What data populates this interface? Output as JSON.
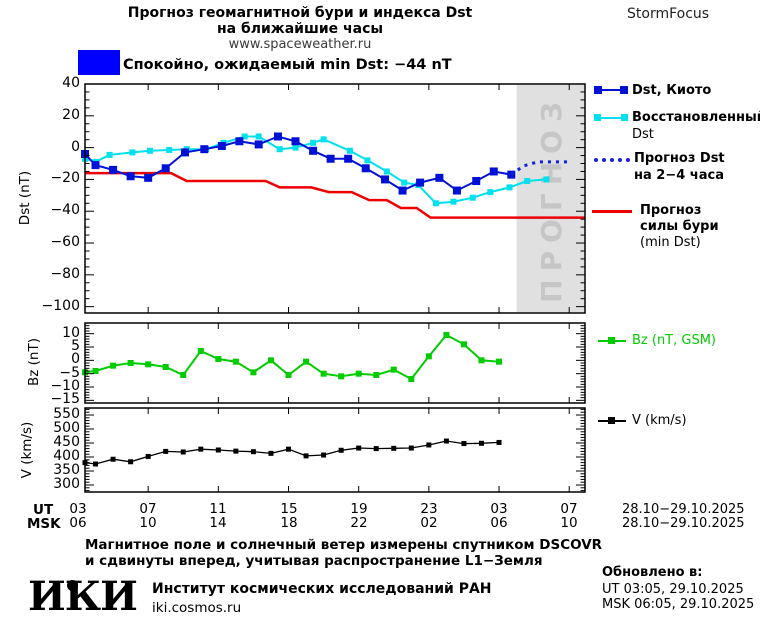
{
  "header": {
    "title_line1": "Прогноз геомагнитной бури и индекса Dst",
    "title_line2": "на ближайшие часы",
    "site": "www.spaceweather.ru",
    "brand": "StormFocus"
  },
  "status": {
    "text": "Спокойно, ожидаемый min Dst: −44 nT"
  },
  "colors": {
    "kyoto": "#0011d6",
    "restored": "#00e0ee",
    "forecast": "#1122dd",
    "storm": "#ee0000",
    "bz": "#00cc00",
    "v": "#000000",
    "status": "#0000ff",
    "band": "#e0e0e0",
    "band_text": "#c6c6c6"
  },
  "legend": {
    "dst_kyoto": "Dst, Киото",
    "restored_line1": "Восстановленный",
    "restored_line2": "Dst",
    "forecast_line1": "Прогноз Dst",
    "forecast_line2": "на 2−4 часа",
    "storm_line1": "Прогноз",
    "storm_line2": "силы бури",
    "storm_line3": "(min Dst)",
    "bz": "Bz (nT, GSM)",
    "v": "V (km/s)"
  },
  "axes": {
    "dst_label": "Dst (nT)",
    "bz_label": "Bz (nT)",
    "v_label": "V (km/s)",
    "ut_label": "UT",
    "msk_label": "MSK",
    "date_range_ut": "28.10−29.10.2025",
    "date_range_msk": "28.10−29.10.2025"
  },
  "footer": {
    "note_line1": "Магнитное поле и солнечный ветер измерены спутником DSCOVR",
    "note_line2": "и сдвинуты вперед, учитывая распространение L1−Земля",
    "updated_title": "Обновлено в:",
    "updated_ut": "UT   03:05, 29.10.2025",
    "updated_msk": "MSK 06:05, 29.10.2025",
    "logo": "ИКИ",
    "institute": "Институт космических исследований РАН",
    "site": "iki.cosmos.ru"
  },
  "chart_data": {
    "type": "line",
    "x_domain": [
      3.4,
      31.9
    ],
    "x_ticks": [
      {
        "h": 3,
        "ut": "03",
        "msk": "06"
      },
      {
        "h": 7,
        "ut": "07",
        "msk": "10"
      },
      {
        "h": 11,
        "ut": "11",
        "msk": "14"
      },
      {
        "h": 15,
        "ut": "15",
        "msk": "18"
      },
      {
        "h": 19,
        "ut": "19",
        "msk": "22"
      },
      {
        "h": 23,
        "ut": "23",
        "msk": "02"
      },
      {
        "h": 27,
        "ut": "03",
        "msk": "06"
      },
      {
        "h": 31,
        "ut": "07",
        "msk": "10"
      }
    ],
    "panels": [
      {
        "id": "dst",
        "ylim": [
          -104,
          40
        ],
        "yticks": [
          [
            40,
            "40"
          ],
          [
            20,
            "20"
          ],
          [
            0,
            "0"
          ],
          [
            -20,
            "−20"
          ],
          [
            -40,
            "−40"
          ],
          [
            -60,
            "−60"
          ],
          [
            -80,
            "−80"
          ],
          [
            -100,
            "−100"
          ]
        ],
        "minor_step": 5,
        "forecast_band": {
          "from": 28,
          "to": 31.9,
          "label": "ПРОГНОЗ"
        },
        "series": [
          {
            "name": "storm-forecast",
            "color": "storm",
            "width": 2.5,
            "marker": 0,
            "x": [
              3.4,
              8.3,
              9.2,
              13.7,
              14.5,
              16.3,
              17.3,
              18.6,
              19.6,
              20.6,
              21.4,
              22.3,
              23.1,
              31.9
            ],
            "y": [
              -16,
              -16,
              -21,
              -21,
              -25,
              -25,
              -28,
              -28,
              -33,
              -33,
              -38,
              -38,
              -44,
              -44
            ]
          },
          {
            "name": "dst-restored",
            "color": "restored",
            "width": 2,
            "marker": 6,
            "x": [
              3.4,
              4,
              4.8,
              6.1,
              7.1,
              8.2,
              9.2,
              10.3,
              11.3,
              12.5,
              13.3,
              14.5,
              15.4,
              16.4,
              17,
              18.5,
              19.5,
              20.6,
              21.6,
              22.4,
              23.4,
              24.4,
              25.5,
              26.5,
              27.6,
              28.6,
              29.7
            ],
            "y": [
              -7,
              -9,
              -4.6,
              -3,
              -2,
              -1.5,
              -1,
              -1,
              3,
              7,
              7,
              -1,
              0,
              3,
              5.2,
              -2,
              -8,
              -15,
              -22,
              -23.5,
              -35,
              -34,
              -31.5,
              -28,
              -25,
              -21,
              -20
            ]
          },
          {
            "name": "dst-kyoto",
            "color": "kyoto",
            "width": 2,
            "marker": 8,
            "x": [
              3.4,
              4,
              5,
              6,
              7,
              8,
              9.1,
              10.2,
              11.2,
              12.2,
              13.3,
              14.4,
              15.4,
              16.4,
              17.4,
              18.4,
              19.4,
              20.5,
              21.5,
              22.5,
              23.6,
              24.6,
              25.7,
              26.7,
              27.7
            ],
            "y": [
              -4,
              -11,
              -14,
              -18,
              -19,
              -13,
              -3,
              -1,
              1,
              4,
              2,
              7,
              4,
              -2,
              -7,
              -7,
              -13,
              -20,
              -27,
              -22,
              -19,
              -27,
              -21,
              -15,
              -17
            ]
          },
          {
            "name": "dst-forecast",
            "color": "forecast",
            "width": 3,
            "marker": 0,
            "style": "dotted",
            "x": [
              27.7,
              28.4,
              29.2,
              30.9
            ],
            "y": [
              -17,
              -11.5,
              -9,
              -9
            ]
          }
        ]
      },
      {
        "id": "bz",
        "ylim": [
          -16,
          14
        ],
        "yticks": [
          [
            10,
            "10"
          ],
          [
            5,
            "5"
          ],
          [
            0,
            "0"
          ],
          [
            -5,
            "−5"
          ],
          [
            -10,
            "−10"
          ],
          [
            -15,
            "−15"
          ]
        ],
        "minor_step": 1,
        "series": [
          {
            "name": "bz-gsm",
            "color": "bz",
            "width": 2,
            "marker": 6,
            "x": [
              3.4,
              4,
              5,
              6,
              7,
              8,
              9,
              10,
              11,
              12,
              13,
              14,
              15,
              16,
              17,
              18,
              19,
              20,
              21,
              22,
              23,
              24,
              25,
              26,
              27
            ],
            "y": [
              -4.5,
              -4,
              -2,
              -1,
              -1.5,
              -2.5,
              -5.5,
              3.5,
              0.5,
              -0.5,
              -4.5,
              0,
              -5.5,
              -0.5,
              -5,
              -6,
              -5,
              -5.5,
              -3.5,
              -7,
              1.5,
              9.5,
              6,
              0,
              -0.5
            ]
          }
        ]
      },
      {
        "id": "v",
        "ylim": [
          275,
          575
        ],
        "yticks": [
          [
            550,
            "550"
          ],
          [
            500,
            "500"
          ],
          [
            450,
            "450"
          ],
          [
            400,
            "400"
          ],
          [
            350,
            "350"
          ],
          [
            300,
            "300"
          ]
        ],
        "minor_step": 10,
        "series": [
          {
            "name": "solar-wind-speed",
            "color": "v",
            "width": 1.3,
            "marker": 5,
            "x": [
              3.4,
              4,
              5,
              6,
              7,
              8,
              9,
              10,
              11,
              12,
              13,
              14,
              15,
              16,
              17,
              18,
              19,
              20,
              21,
              22,
              23,
              24,
              25,
              26,
              27
            ],
            "y": [
              380,
              375,
              392,
              383,
              402,
              420,
              418,
              428,
              425,
              421,
              419,
              413,
              428,
              404,
              407,
              424,
              432,
              430,
              431,
              432,
              443,
              457,
              448,
              449,
              452
            ]
          }
        ]
      }
    ]
  }
}
